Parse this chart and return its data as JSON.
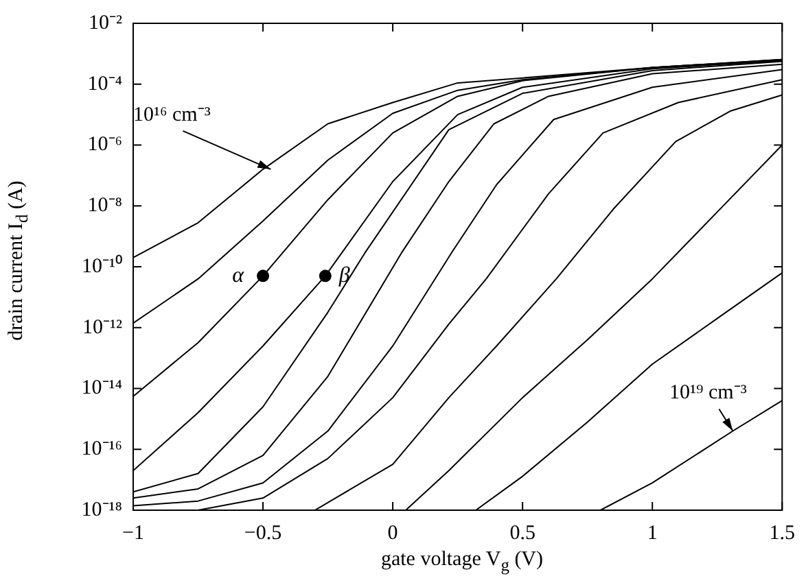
{
  "chart_data": {
    "type": "line",
    "xlabel": "gate voltage V$_{g}$ (V)",
    "ylabel": "drain current I$_{d}$ (A)",
    "log": "y",
    "grid": false,
    "marker": "none",
    "line_style": "solid",
    "xlim": [
      -1,
      1.5
    ],
    "xticks": [
      {
        "value": -1,
        "label": "−1"
      },
      {
        "value": -0.5,
        "label": "−0.5"
      },
      0,
      0.5,
      1,
      1.5
    ],
    "ylim": [
      1e-18,
      0.01
    ],
    "yticks": [
      {
        "value": 1e-18,
        "label": "10⁻¹⁸"
      },
      {
        "value": 1e-16,
        "label": "10⁻¹⁶"
      },
      {
        "value": 1e-14,
        "label": "10⁻¹⁴"
      },
      {
        "value": 1e-12,
        "label": "10⁻¹²"
      },
      {
        "value": 1e-10,
        "label": "10⁻¹⁰"
      },
      {
        "value": 1e-08,
        "label": "10⁻⁸"
      },
      {
        "value": 1e-06,
        "label": "10⁻⁶"
      },
      {
        "value": 0.0001,
        "label": "10⁻⁴"
      },
      {
        "value": 0.01,
        "label": "10⁻²"
      }
    ],
    "series": [
      {
        "color": "#000000",
        "x": [
          -1,
          -0.75,
          -0.5,
          -0.25,
          0,
          0.25,
          0.5,
          1,
          1.5
        ],
        "values": [
          2e-10,
          2.8e-09,
          1.6e-07,
          5e-06,
          2.5e-05,
          0.00011,
          0.00016,
          0.00035,
          0.00065
        ]
      },
      {
        "color": "#000000",
        "x": [
          -1,
          -0.75,
          -0.5,
          -0.25,
          0,
          0.25,
          0.5,
          1,
          1.5
        ],
        "values": [
          1.4e-12,
          4e-11,
          3.2e-09,
          3.2e-07,
          1.1e-05,
          6.3e-05,
          0.00014,
          0.00035,
          0.00065
        ]
      },
      {
        "color": "#000000",
        "x": [
          -1,
          -0.75,
          -0.5,
          -0.25,
          0,
          0.25,
          0.5,
          1,
          1.5
        ],
        "values": [
          5.5e-15,
          3.2e-13,
          5e-11,
          1.6e-08,
          2.5e-06,
          4e-05,
          0.00013,
          0.00035,
          0.00063
        ]
      },
      {
        "color": "#000000",
        "x": [
          -1,
          -0.75,
          -0.5,
          -0.26,
          0,
          0.25,
          0.5,
          1,
          1.5
        ],
        "values": [
          2e-17,
          1.6e-15,
          2.5e-13,
          5e-11,
          6.3e-08,
          1e-05,
          7.9e-05,
          0.00032,
          0.0006
        ]
      },
      {
        "color": "#000000",
        "x": [
          -1,
          -0.75,
          -0.5,
          -0.25,
          -0.108,
          0,
          0.216,
          0.5,
          1,
          1.5
        ],
        "values": [
          4e-18,
          1.6e-17,
          2.5e-15,
          3.2e-12,
          2.8e-10,
          6.3e-09,
          3.2e-06,
          5e-05,
          0.00028,
          0.00056
        ]
      },
      {
        "color": "#000000",
        "x": [
          -1,
          -0.75,
          -0.5,
          -0.25,
          0.033,
          0.216,
          0.39,
          0.6,
          1,
          1.5
        ],
        "values": [
          2.5e-18,
          5e-18,
          6.3e-17,
          2.5e-14,
          2.8e-10,
          6.3e-08,
          5e-06,
          4e-05,
          0.00022,
          0.00045
        ]
      },
      {
        "color": "#000000",
        "x": [
          -1,
          -0.75,
          -0.5,
          -0.25,
          0,
          0.23,
          0.4,
          0.62,
          1,
          1.5
        ],
        "values": [
          1.4e-18,
          2e-18,
          7.9e-18,
          4e-16,
          2.5e-13,
          3.2e-10,
          5e-08,
          6.9e-06,
          7.9e-05,
          0.0003
        ]
      },
      {
        "color": "#000000",
        "x": [
          -0.75,
          -0.5,
          -0.25,
          0,
          0.216,
          0.36,
          0.6,
          0.81,
          1.1,
          1.5
        ],
        "values": [
          1e-18,
          2.5e-18,
          5e-17,
          5e-15,
          1.3e-12,
          4e-11,
          2.5e-08,
          2.5e-06,
          2.5e-05,
          0.00014
        ]
      },
      {
        "color": "#000000",
        "x": [
          -0.3,
          0,
          0.216,
          0.4,
          0.63,
          0.85,
          1.09,
          1.3,
          1.5
        ],
        "values": [
          1e-18,
          3.2e-17,
          5e-15,
          2.5e-13,
          4e-11,
          7.9e-09,
          1.3e-06,
          1.3e-05,
          4.4e-05
        ]
      },
      {
        "color": "#000000",
        "x": [
          0.05,
          0.216,
          0.5,
          0.75,
          1,
          1.25,
          1.5
        ],
        "values": [
          1e-18,
          2e-17,
          5e-15,
          4e-13,
          4e-11,
          6.3e-09,
          1e-06
        ]
      },
      {
        "color": "#000000",
        "x": [
          0.32,
          0.5,
          0.75,
          1,
          1.25,
          1.5
        ],
        "values": [
          1e-18,
          1.3e-17,
          7.9e-16,
          6.3e-14,
          2e-12,
          6.3e-11
        ]
      },
      {
        "color": "#000000",
        "x": [
          0.8,
          1,
          1.31,
          1.5
        ],
        "values": [
          1e-18,
          7.9e-18,
          4e-16,
          4e-15
        ]
      },
      {
        "type": "scatter",
        "marker": "circle",
        "color": "#000000",
        "x": [
          -0.5,
          -0.26
        ],
        "values": [
          5e-11,
          5e-11
        ]
      }
    ],
    "annotations": [
      {
        "text": "10¹⁶ cm⁻³",
        "x": -0.47,
        "y": 1.6e-07
      },
      {
        "text": "α",
        "x": -0.5,
        "y": 5e-11
      },
      {
        "text": "β",
        "x": -0.26,
        "y": 5e-11
      },
      {
        "text": "10¹⁹ cm⁻³",
        "x": 1.31,
        "y": 4e-16
      }
    ]
  }
}
